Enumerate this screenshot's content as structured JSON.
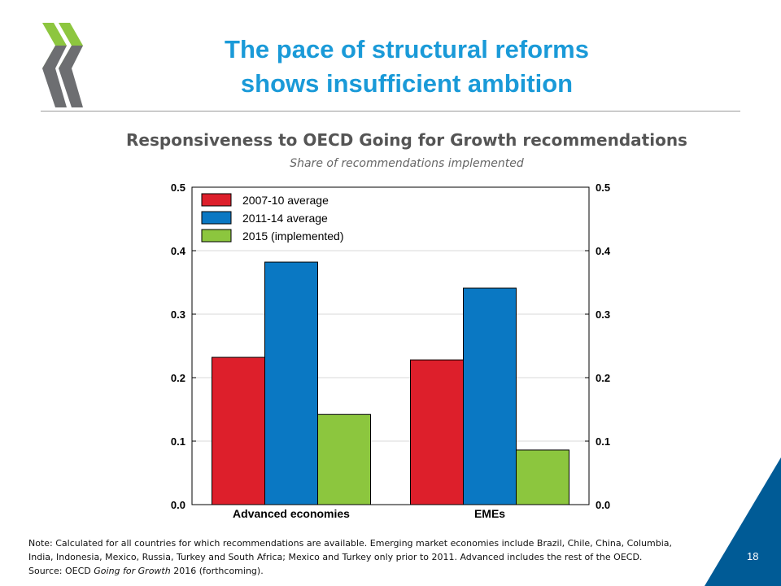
{
  "slide": {
    "title_line1": "The pace of structural reforms",
    "title_line2": "shows insufficient ambition",
    "page_number": "18",
    "logo_colors": {
      "green": "#8dc63f",
      "gray": "#6d6e71"
    },
    "accent_color": "#1a9ad8",
    "corner_color": "#005b96"
  },
  "chart_data": {
    "type": "bar",
    "title": "Responsiveness to OECD Going for Growth recommendations",
    "subtitle": "Share of recommendations implemented",
    "categories": [
      "Advanced economies",
      "EMEs"
    ],
    "series": [
      {
        "name": "2007-10 average",
        "color": "#dd1f2b",
        "values": [
          0.232,
          0.228
        ]
      },
      {
        "name": "2011-14 average",
        "color": "#0a78c3",
        "values": [
          0.382,
          0.341
        ]
      },
      {
        "name": "2015 (implemented)",
        "color": "#8cc63e",
        "values": [
          0.142,
          0.086
        ]
      }
    ],
    "ylim": [
      0,
      0.5
    ],
    "yticks": [
      "0.0",
      "0.1",
      "0.2",
      "0.3",
      "0.4",
      "0.5"
    ],
    "right_axis": true,
    "grid": true,
    "legend": "top-left"
  },
  "note": {
    "line1_label": "Note:",
    "line1_text": " Calculated for all countries for which recommendations are available. Emerging market economies include Brazil, Chile, China, Columbia,",
    "line2_text": "India, Indonesia, Mexico, Russia, Turkey and South Africa; Mexico and Turkey only prior to 2011.  Advanced includes the rest of the OECD.",
    "line3_label": "Source:",
    "line3_pre": " OECD ",
    "line3_italic": "Going for Growth",
    "line3_post": " 2016 (forthcoming)."
  }
}
